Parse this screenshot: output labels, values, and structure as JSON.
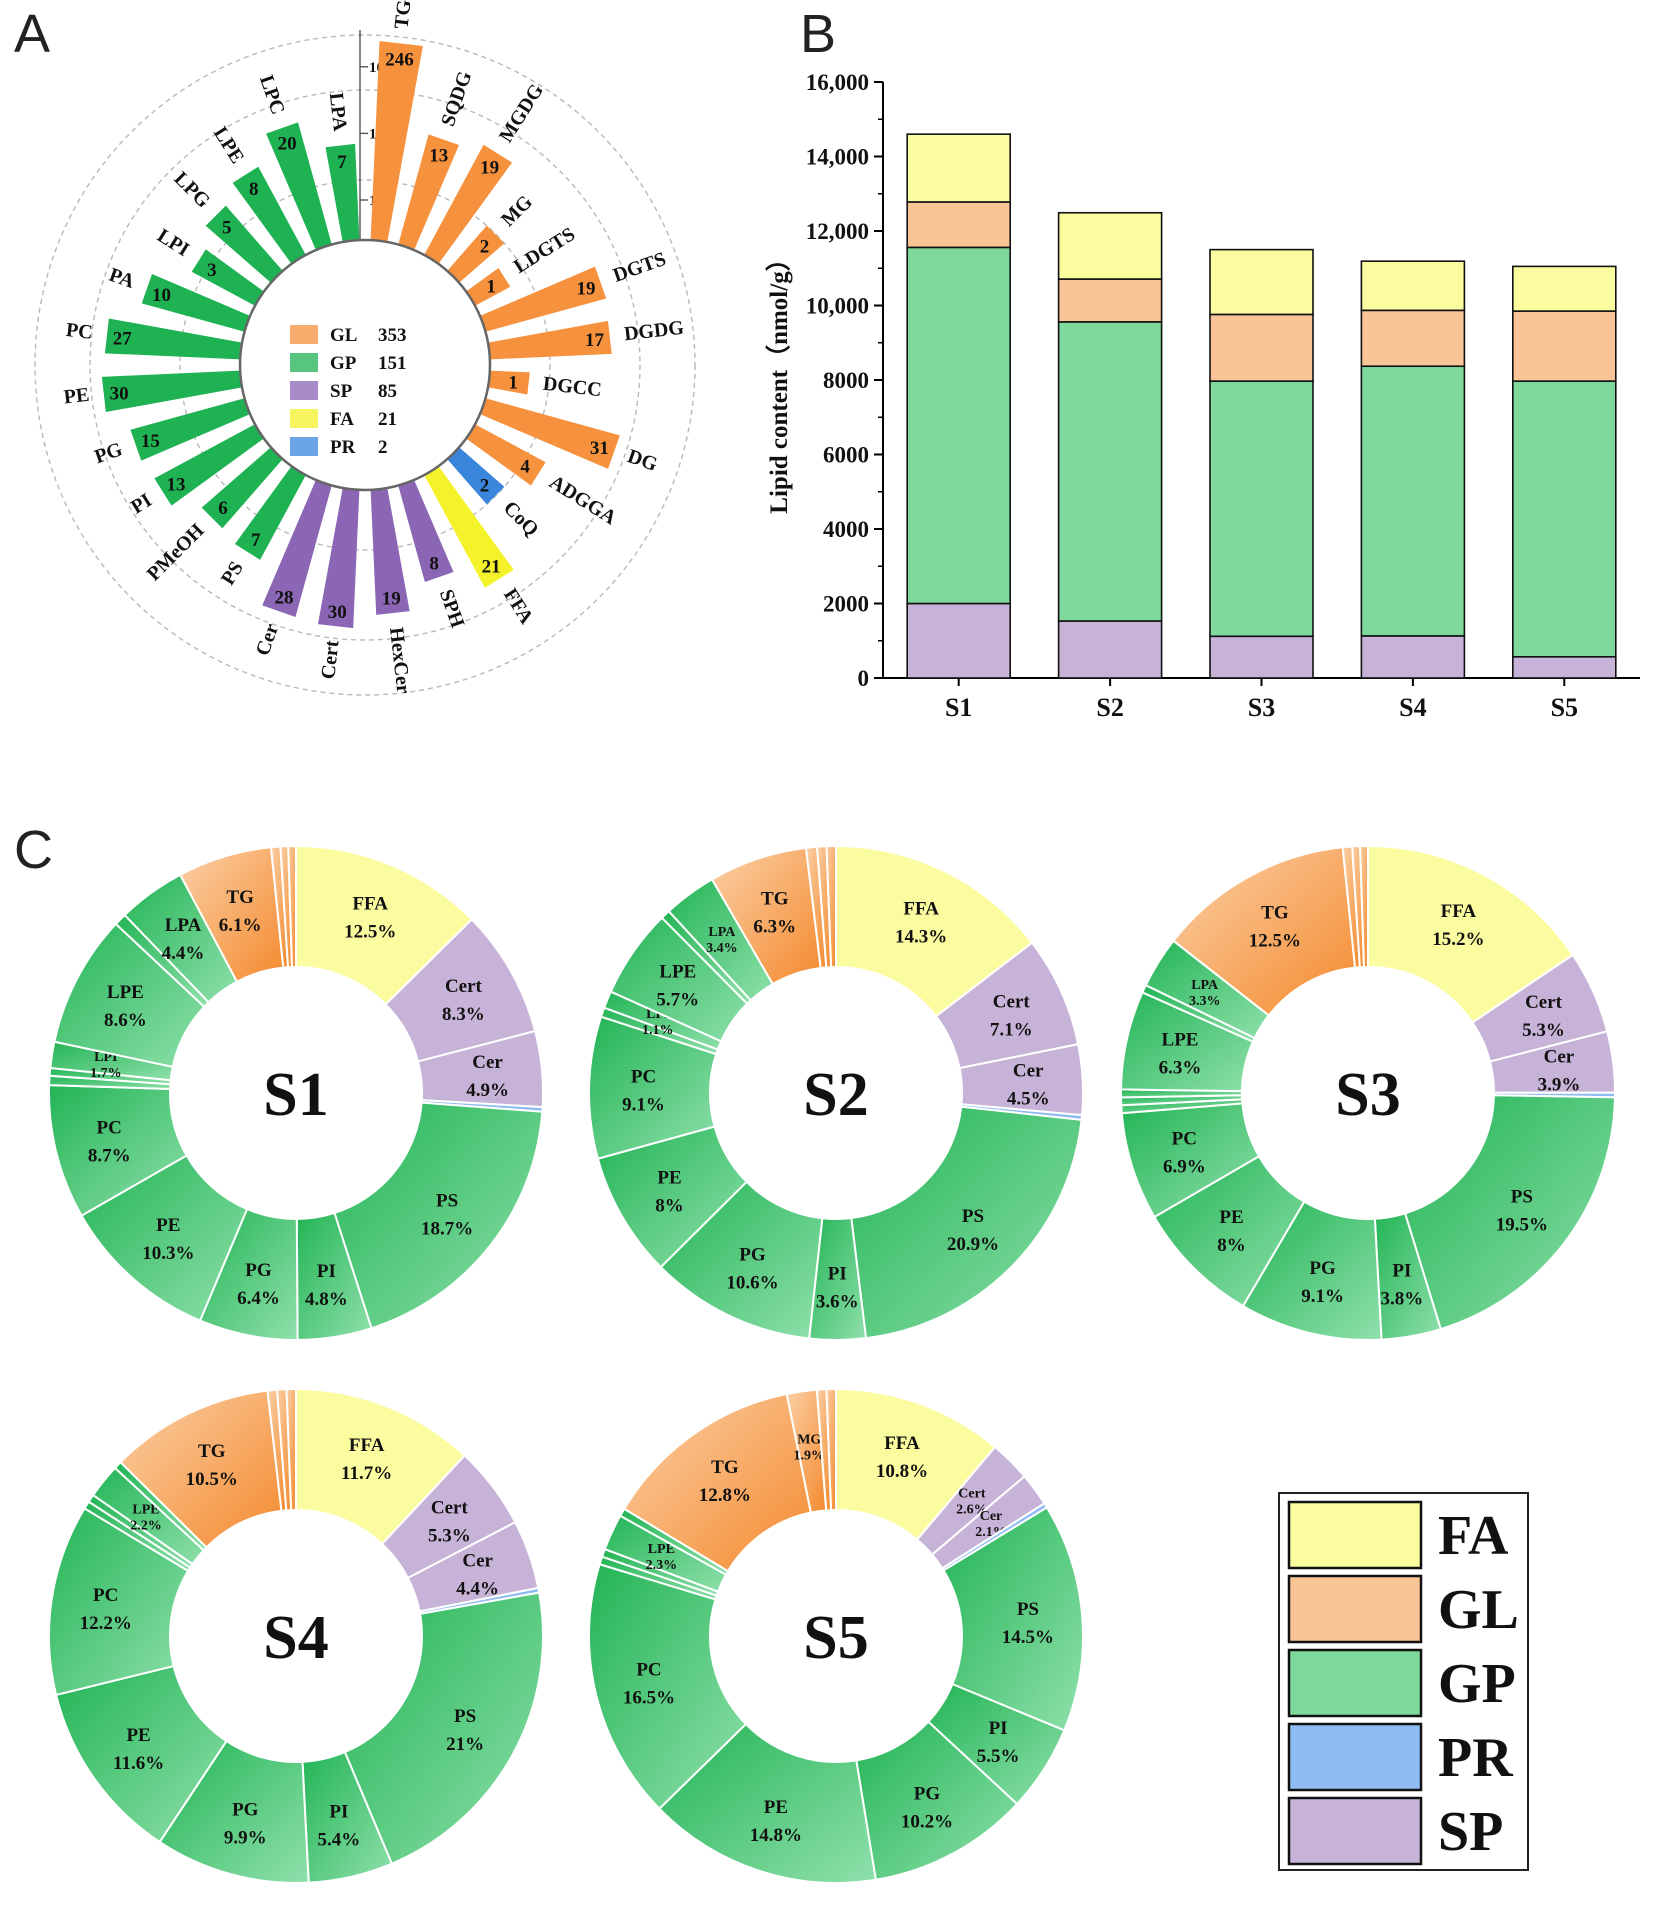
{
  "panels": {
    "a": "A",
    "b": "B",
    "c": "C"
  },
  "colors": {
    "FA": "#fbfb9f",
    "GL": "#f9c496",
    "GP": "#7fd99c",
    "PR": "#8fbcf3",
    "SP": "#c7b3d7",
    "GLbar": "#f6913e",
    "GPbar": "#1fb253",
    "SPbar": "#8b66b5",
    "FAbar": "#f4f22a",
    "PRbar": "#3a86dc"
  },
  "chart_data": [
    {
      "type": "radial-bar",
      "panel": "A",
      "scale": "log",
      "ticks": [
        "1",
        "10",
        "100"
      ],
      "bars": [
        {
          "name": "TG",
          "value": 246,
          "group": "GL"
        },
        {
          "name": "SQDG",
          "value": 13,
          "group": "GL"
        },
        {
          "name": "MGDG",
          "value": 19,
          "group": "GL"
        },
        {
          "name": "MG",
          "value": 2,
          "group": "GL"
        },
        {
          "name": "LDGTS",
          "value": 1,
          "group": "GL"
        },
        {
          "name": "DGTS",
          "value": 19,
          "group": "GL"
        },
        {
          "name": "DGDG",
          "value": 17,
          "group": "GL"
        },
        {
          "name": "DGCC",
          "value": 1,
          "group": "GL"
        },
        {
          "name": "DG",
          "value": 31,
          "group": "GL"
        },
        {
          "name": "ADGGA",
          "value": 4,
          "group": "GL"
        },
        {
          "name": "CoQ",
          "value": 2,
          "group": "PR"
        },
        {
          "name": "FFA",
          "value": 21,
          "group": "FA"
        },
        {
          "name": "SPH",
          "value": 8,
          "group": "SP"
        },
        {
          "name": "HexCer",
          "value": 19,
          "group": "SP"
        },
        {
          "name": "Cert",
          "value": 30,
          "group": "SP"
        },
        {
          "name": "Cer",
          "value": 28,
          "group": "SP"
        },
        {
          "name": "PS",
          "value": 7,
          "group": "GP"
        },
        {
          "name": "PMeOH",
          "value": 6,
          "group": "GP"
        },
        {
          "name": "PI",
          "value": 13,
          "group": "GP"
        },
        {
          "name": "PG",
          "value": 15,
          "group": "GP"
        },
        {
          "name": "PE",
          "value": 30,
          "group": "GP"
        },
        {
          "name": "PC",
          "value": 27,
          "group": "GP"
        },
        {
          "name": "PA",
          "value": 10,
          "group": "GP"
        },
        {
          "name": "LPI",
          "value": 3,
          "group": "GP"
        },
        {
          "name": "LPG",
          "value": 5,
          "group": "GP"
        },
        {
          "name": "LPE",
          "value": 8,
          "group": "GP"
        },
        {
          "name": "LPC",
          "value": 20,
          "group": "GP"
        },
        {
          "name": "LPA",
          "value": 7,
          "group": "GP"
        }
      ],
      "legend": [
        {
          "group": "GL",
          "label": "GL",
          "count": "353"
        },
        {
          "group": "GP",
          "label": "GP",
          "count": "151"
        },
        {
          "group": "SP",
          "label": "SP",
          "count": "85"
        },
        {
          "group": "FA",
          "label": "FA",
          "count": "21"
        },
        {
          "group": "PR",
          "label": "PR",
          "count": "2"
        }
      ]
    },
    {
      "type": "bar",
      "stacked": true,
      "panel": "B",
      "ylabel": "Lipid content（nmol/g）",
      "ylim": [
        0,
        16000
      ],
      "ytick_values": [
        0,
        2000,
        4000,
        6000,
        8000,
        10000,
        12000,
        14000,
        16000
      ],
      "ytick_labels": [
        "0",
        "2000",
        "4000",
        "6000",
        "8000",
        "10,000",
        "12,000",
        "14,000",
        "16,000"
      ],
      "categories": [
        "S1",
        "S2",
        "S3",
        "S4",
        "S5"
      ],
      "series": [
        {
          "name": "SP",
          "values": [
            2000,
            1530,
            1120,
            1130,
            570
          ]
        },
        {
          "name": "GP",
          "values": [
            9560,
            8030,
            6850,
            7240,
            7400
          ]
        },
        {
          "name": "GL",
          "values": [
            1220,
            1150,
            1790,
            1500,
            1880
          ]
        },
        {
          "name": "FA",
          "values": [
            1820,
            1780,
            1740,
            1320,
            1200
          ]
        }
      ]
    },
    {
      "type": "donut",
      "panel": "C",
      "charts": [
        {
          "name": "S1",
          "slices": [
            {
              "label": "FFA",
              "value": 12.5,
              "group": "FA",
              "show": true
            },
            {
              "label": "Cert",
              "value": 8.3,
              "group": "SP",
              "show": true
            },
            {
              "label": "Cer",
              "value": 4.9,
              "group": "SP",
              "show": true
            },
            {
              "label": "",
              "value": 0.3,
              "group": "PR",
              "show": false
            },
            {
              "label": "PS",
              "value": 18.7,
              "group": "GP",
              "show": true
            },
            {
              "label": "PI",
              "value": 4.8,
              "group": "GP",
              "show": true
            },
            {
              "label": "PG",
              "value": 6.4,
              "group": "GP",
              "show": true
            },
            {
              "label": "PE",
              "value": 10.3,
              "group": "GP",
              "show": true
            },
            {
              "label": "PC",
              "value": 8.7,
              "group": "GP",
              "show": true
            },
            {
              "label": "",
              "value": 0.6,
              "group": "GP",
              "show": false
            },
            {
              "label": "",
              "value": 0.5,
              "group": "GP",
              "show": false
            },
            {
              "label": "LPI",
              "value": 1.7,
              "group": "GP",
              "show": true
            },
            {
              "label": "LPE",
              "value": 8.6,
              "group": "GP",
              "show": true
            },
            {
              "label": "",
              "value": 0.8,
              "group": "GP",
              "show": false
            },
            {
              "label": "LPA",
              "value": 4.4,
              "group": "GP",
              "show": true
            },
            {
              "label": "TG",
              "value": 6.1,
              "group": "GL",
              "show": true
            },
            {
              "label": "",
              "value": 0.6,
              "group": "GL",
              "show": false
            },
            {
              "label": "",
              "value": 0.5,
              "group": "GL",
              "show": false
            },
            {
              "label": "",
              "value": 0.5,
              "group": "GL",
              "show": false
            }
          ]
        },
        {
          "name": "S2",
          "slices": [
            {
              "label": "FFA",
              "value": 14.3,
              "group": "FA",
              "show": true
            },
            {
              "label": "Cert",
              "value": 7.1,
              "group": "SP",
              "show": true
            },
            {
              "label": "Cer",
              "value": 4.5,
              "group": "SP",
              "show": true
            },
            {
              "label": "",
              "value": 0.3,
              "group": "PR",
              "show": false
            },
            {
              "label": "PS",
              "value": 20.9,
              "group": "GP",
              "show": true
            },
            {
              "label": "PI",
              "value": 3.6,
              "group": "GP",
              "show": true
            },
            {
              "label": "PG",
              "value": 10.6,
              "group": "GP",
              "show": true
            },
            {
              "label": "PE",
              "value": 8,
              "group": "GP",
              "show": true
            },
            {
              "label": "PC",
              "value": 9.1,
              "group": "GP",
              "show": true
            },
            {
              "label": "",
              "value": 0.6,
              "group": "GP",
              "show": false
            },
            {
              "label": "LPI",
              "value": 1.1,
              "group": "GP",
              "show": true
            },
            {
              "label": "LPE",
              "value": 5.7,
              "group": "GP",
              "show": true
            },
            {
              "label": "",
              "value": 0.6,
              "group": "GP",
              "show": false
            },
            {
              "label": "LPA",
              "value": 3.4,
              "group": "GP",
              "show": true
            },
            {
              "label": "TG",
              "value": 6.3,
              "group": "GL",
              "show": true
            },
            {
              "label": "",
              "value": 0.7,
              "group": "GL",
              "show": false
            },
            {
              "label": "",
              "value": 0.6,
              "group": "GL",
              "show": false
            },
            {
              "label": "",
              "value": 0.6,
              "group": "GL",
              "show": false
            }
          ]
        },
        {
          "name": "S3",
          "slices": [
            {
              "label": "FFA",
              "value": 15.2,
              "group": "FA",
              "show": true
            },
            {
              "label": "Cert",
              "value": 5.3,
              "group": "SP",
              "show": true
            },
            {
              "label": "Cer",
              "value": 3.9,
              "group": "SP",
              "show": true
            },
            {
              "label": "",
              "value": 0.3,
              "group": "PR",
              "show": false
            },
            {
              "label": "PS",
              "value": 19.5,
              "group": "GP",
              "show": true
            },
            {
              "label": "PI",
              "value": 3.8,
              "group": "GP",
              "show": true
            },
            {
              "label": "PG",
              "value": 9.1,
              "group": "GP",
              "show": true
            },
            {
              "label": "PE",
              "value": 8,
              "group": "GP",
              "show": true
            },
            {
              "label": "PC",
              "value": 6.9,
              "group": "GP",
              "show": true
            },
            {
              "label": "",
              "value": 0.5,
              "group": "GP",
              "show": false
            },
            {
              "label": "",
              "value": 0.5,
              "group": "GP",
              "show": false
            },
            {
              "label": "",
              "value": 0.5,
              "group": "GP",
              "show": false
            },
            {
              "label": "LPE",
              "value": 6.3,
              "group": "GP",
              "show": true
            },
            {
              "label": "",
              "value": 0.5,
              "group": "GP",
              "show": false
            },
            {
              "label": "LPA",
              "value": 3.3,
              "group": "GP",
              "show": true
            },
            {
              "label": "TG",
              "value": 12.5,
              "group": "GL",
              "show": true
            },
            {
              "label": "",
              "value": 0.6,
              "group": "GL",
              "show": false
            },
            {
              "label": "",
              "value": 0.5,
              "group": "GL",
              "show": false
            },
            {
              "label": "",
              "value": 0.5,
              "group": "GL",
              "show": false
            }
          ]
        },
        {
          "name": "S4",
          "slices": [
            {
              "label": "FFA",
              "value": 11.7,
              "group": "FA",
              "show": true
            },
            {
              "label": "Cert",
              "value": 5.3,
              "group": "SP",
              "show": true
            },
            {
              "label": "Cer",
              "value": 4.4,
              "group": "SP",
              "show": true
            },
            {
              "label": "",
              "value": 0.3,
              "group": "PR",
              "show": false
            },
            {
              "label": "PS",
              "value": 21,
              "group": "GP",
              "show": true
            },
            {
              "label": "PI",
              "value": 5.4,
              "group": "GP",
              "show": true
            },
            {
              "label": "PG",
              "value": 9.9,
              "group": "GP",
              "show": true
            },
            {
              "label": "PE",
              "value": 11.6,
              "group": "GP",
              "show": true
            },
            {
              "label": "PC",
              "value": 12.2,
              "group": "GP",
              "show": true
            },
            {
              "label": "",
              "value": 0.5,
              "group": "GP",
              "show": false
            },
            {
              "label": "",
              "value": 0.5,
              "group": "GP",
              "show": false
            },
            {
              "label": "LPE",
              "value": 2.2,
              "group": "GP",
              "show": true
            },
            {
              "label": "",
              "value": 0.5,
              "group": "GP",
              "show": false
            },
            {
              "label": "TG",
              "value": 10.5,
              "group": "GL",
              "show": true
            },
            {
              "label": "",
              "value": 0.6,
              "group": "GL",
              "show": false
            },
            {
              "label": "",
              "value": 0.6,
              "group": "GL",
              "show": false
            },
            {
              "label": "",
              "value": 0.6,
              "group": "GL",
              "show": false
            }
          ]
        },
        {
          "name": "S5",
          "slices": [
            {
              "label": "FFA",
              "value": 10.8,
              "group": "FA",
              "show": true
            },
            {
              "label": "Cert",
              "value": 2.6,
              "group": "SP",
              "show": true
            },
            {
              "label": "Cer",
              "value": 2.1,
              "group": "SP",
              "show": true
            },
            {
              "label": "",
              "value": 0.3,
              "group": "PR",
              "show": false
            },
            {
              "label": "PS",
              "value": 14.5,
              "group": "GP",
              "show": true
            },
            {
              "label": "PI",
              "value": 5.5,
              "group": "GP",
              "show": true
            },
            {
              "label": "PG",
              "value": 10.2,
              "group": "GP",
              "show": true
            },
            {
              "label": "PE",
              "value": 14.8,
              "group": "GP",
              "show": true
            },
            {
              "label": "PC",
              "value": 16.5,
              "group": "GP",
              "show": true
            },
            {
              "label": "",
              "value": 0.5,
              "group": "GP",
              "show": false
            },
            {
              "label": "",
              "value": 0.5,
              "group": "GP",
              "show": false
            },
            {
              "label": "LPE",
              "value": 2.3,
              "group": "GP",
              "show": true
            },
            {
              "label": "",
              "value": 0.5,
              "group": "GP",
              "show": false
            },
            {
              "label": "TG",
              "value": 12.8,
              "group": "GL",
              "show": true
            },
            {
              "label": "MG",
              "value": 1.9,
              "group": "GL",
              "show": true
            },
            {
              "label": "",
              "value": 0.6,
              "group": "GL",
              "show": false
            },
            {
              "label": "",
              "value": 0.6,
              "group": "GL",
              "show": false
            }
          ]
        }
      ],
      "legend": [
        "FA",
        "GL",
        "GP",
        "PR",
        "SP"
      ]
    }
  ]
}
